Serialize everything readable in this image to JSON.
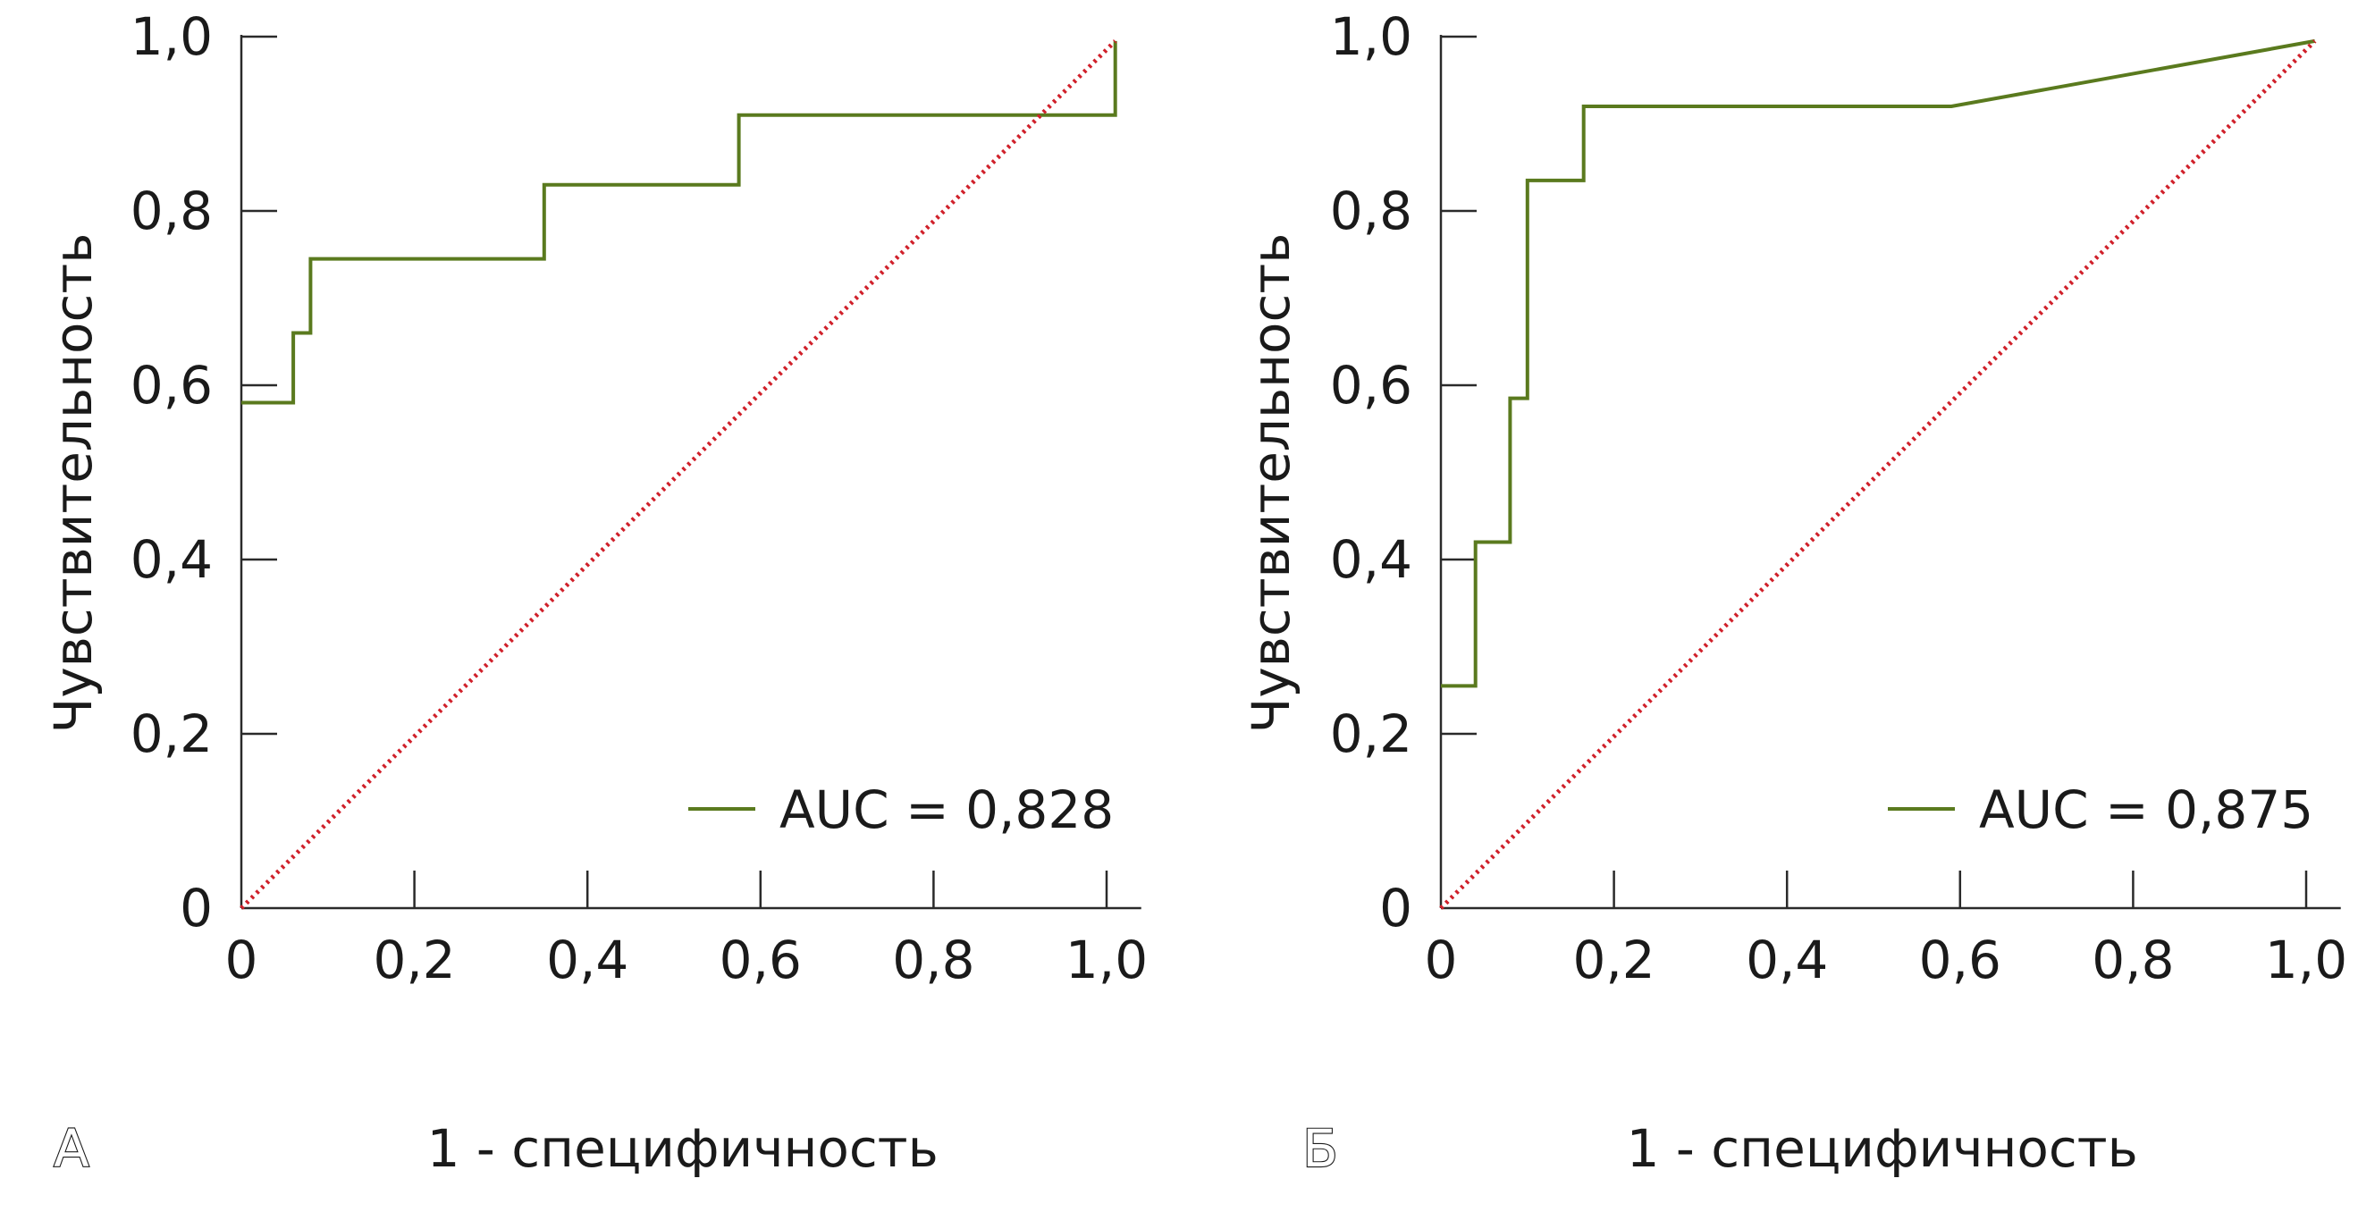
{
  "chart_data": [
    {
      "type": "line",
      "panel_label": "А",
      "xlabel": "1 - специфичность",
      "ylabel": "Чувствительность",
      "xlim": [
        0,
        1.0
      ],
      "ylim": [
        0,
        1.0
      ],
      "x_ticks": [
        "0",
        "0,2",
        "0,4",
        "0,6",
        "0,8",
        "1,0"
      ],
      "y_ticks": [
        "0",
        "0,2",
        "0,4",
        "0,6",
        "0,8",
        "1,0"
      ],
      "legend_position": "bottom-right",
      "colors": {
        "roc": "#5a7a1e",
        "reference": "#d0202a"
      },
      "series": [
        {
          "name": "AUC = 0,828",
          "style": "solid",
          "points": [
            [
              0,
              0.58
            ],
            [
              0.06,
              0.58
            ],
            [
              0.06,
              0.66
            ],
            [
              0.08,
              0.66
            ],
            [
              0.08,
              0.745
            ],
            [
              0.35,
              0.745
            ],
            [
              0.35,
              0.83
            ],
            [
              0.575,
              0.83
            ],
            [
              0.575,
              0.91
            ],
            [
              1.01,
              0.91
            ],
            [
              1.01,
              0.995
            ]
          ]
        },
        {
          "name": "reference",
          "style": "dotted",
          "points": [
            [
              0,
              0
            ],
            [
              1.01,
              0.995
            ]
          ]
        }
      ]
    },
    {
      "type": "line",
      "panel_label": "Б",
      "xlabel": "1 - специфичность",
      "ylabel": "Чувствительность",
      "xlim": [
        0,
        1.0
      ],
      "ylim": [
        0,
        1.0
      ],
      "x_ticks": [
        "0",
        "0,2",
        "0,4",
        "0,6",
        "0,8",
        "1,0"
      ],
      "y_ticks": [
        "0",
        "0,2",
        "0,4",
        "0,6",
        "0,8",
        "1,0"
      ],
      "legend_position": "bottom-right",
      "colors": {
        "roc": "#5a7a1e",
        "reference": "#d0202a"
      },
      "series": [
        {
          "name": "AUC = 0,875",
          "style": "solid",
          "points": [
            [
              0,
              0.255
            ],
            [
              0.04,
              0.255
            ],
            [
              0.04,
              0.42
            ],
            [
              0.08,
              0.42
            ],
            [
              0.08,
              0.585
            ],
            [
              0.1,
              0.585
            ],
            [
              0.1,
              0.835
            ],
            [
              0.165,
              0.835
            ],
            [
              0.165,
              0.92
            ],
            [
              0.59,
              0.92
            ],
            [
              1.01,
              0.995
            ]
          ]
        },
        {
          "name": "reference",
          "style": "dotted",
          "points": [
            [
              0,
              0
            ],
            [
              1.01,
              0.995
            ]
          ]
        }
      ]
    }
  ]
}
